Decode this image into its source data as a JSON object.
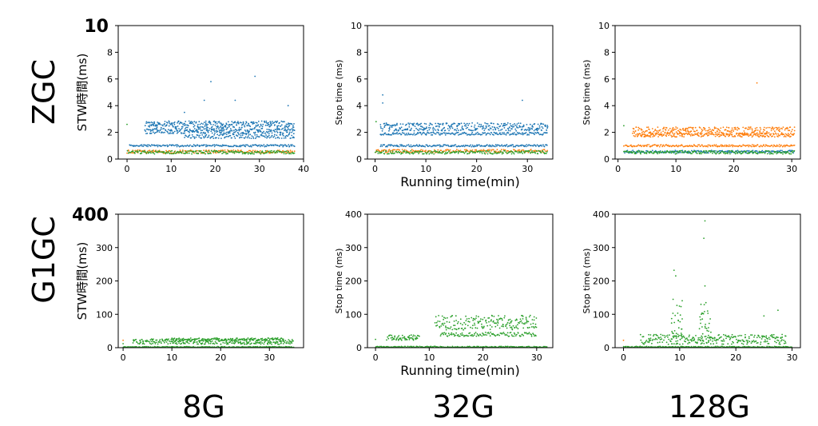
{
  "colors": {
    "blue": "#1f77b4",
    "orange": "#ff7f0e",
    "green": "#2ca02c"
  },
  "row_labels": [
    "ZGC",
    "G1GC"
  ],
  "col_labels": [
    "8G",
    "32G",
    "128G"
  ],
  "chart_data": [
    {
      "type": "scatter",
      "id": "zgc-8g",
      "row": 0,
      "col": 0,
      "xlabel": "",
      "ylabel": "STW時間(ms)",
      "xlim": [
        -2,
        40
      ],
      "ylim": [
        0,
        10
      ],
      "xticks": [
        0,
        10,
        20,
        30,
        40
      ],
      "yticks": [
        0,
        2,
        4,
        6,
        8,
        10
      ],
      "ytick_labels": [
        "0",
        "2",
        "4",
        "6",
        "8",
        "10"
      ],
      "bold_ymax_label": "10",
      "outliers": [
        {
          "color": "blue",
          "x": 19,
          "y": 5.8
        },
        {
          "color": "blue",
          "x": 29,
          "y": 6.2
        },
        {
          "color": "blue",
          "x": 17.5,
          "y": 4.4
        },
        {
          "color": "blue",
          "x": 24.5,
          "y": 4.4
        },
        {
          "color": "blue",
          "x": 36.5,
          "y": 4.0
        },
        {
          "color": "blue",
          "x": 13,
          "y": 3.5
        },
        {
          "color": "green",
          "x": 0,
          "y": 2.6
        }
      ],
      "bands": [
        {
          "color": "blue",
          "x_start": 4,
          "x_end": 38,
          "y": 2.6,
          "spread": 0.25
        },
        {
          "color": "blue",
          "x_start": 4,
          "x_end": 38,
          "y": 2.1,
          "spread": 0.2
        },
        {
          "color": "blue",
          "x_start": 13,
          "x_end": 38,
          "y": 1.7,
          "spread": 0.15
        },
        {
          "color": "blue",
          "x_start": 0.5,
          "x_end": 38,
          "y": 1.0,
          "spread": 0.08
        },
        {
          "color": "orange",
          "x_start": 0,
          "x_end": 38,
          "y": 0.55,
          "spread": 0.12
        },
        {
          "color": "green",
          "x_start": 0,
          "x_end": 38,
          "y": 0.5,
          "spread": 0.12
        }
      ]
    },
    {
      "type": "scatter",
      "id": "zgc-32g",
      "row": 0,
      "col": 1,
      "xlabel": "Running time(min)",
      "ylabel": "Stop time (ms)",
      "xlim": [
        -1.5,
        35
      ],
      "ylim": [
        0,
        10
      ],
      "xticks": [
        0,
        10,
        20,
        30
      ],
      "yticks": [
        0,
        2,
        4,
        6,
        8,
        10
      ],
      "ytick_labels": [
        "0",
        "2",
        "4",
        "6",
        "8",
        "10"
      ],
      "bold_ymax_label": "",
      "outliers": [
        {
          "color": "blue",
          "x": 1.5,
          "y": 4.8
        },
        {
          "color": "blue",
          "x": 1.5,
          "y": 4.2
        },
        {
          "color": "blue",
          "x": 29,
          "y": 4.4
        },
        {
          "color": "green",
          "x": 0.2,
          "y": 2.8
        }
      ],
      "bands": [
        {
          "color": "blue",
          "x_start": 1,
          "x_end": 34,
          "y": 2.4,
          "spread": 0.3
        },
        {
          "color": "blue",
          "x_start": 1,
          "x_end": 34,
          "y": 1.9,
          "spread": 0.1
        },
        {
          "color": "blue",
          "x_start": 1,
          "x_end": 34,
          "y": 1.0,
          "spread": 0.08
        },
        {
          "color": "orange",
          "x_start": 0,
          "x_end": 34,
          "y": 0.6,
          "spread": 0.12
        },
        {
          "color": "green",
          "x_start": 0,
          "x_end": 34,
          "y": 0.5,
          "spread": 0.12
        }
      ]
    },
    {
      "type": "scatter",
      "id": "zgc-128g",
      "row": 0,
      "col": 2,
      "xlabel": "",
      "ylabel": "Stop time (ms)",
      "xlim": [
        -0.5,
        31.5
      ],
      "ylim": [
        0,
        10
      ],
      "xticks": [
        0,
        10,
        20,
        30
      ],
      "yticks": [
        0,
        2,
        4,
        6,
        8,
        10
      ],
      "ytick_labels": [
        "0",
        "2",
        "4",
        "6",
        "8",
        "10"
      ],
      "bold_ymax_label": "",
      "outliers": [
        {
          "color": "orange",
          "x": 24,
          "y": 5.7
        },
        {
          "color": "green",
          "x": 1,
          "y": 2.5
        }
      ],
      "bands": [
        {
          "color": "orange",
          "x_start": 2.5,
          "x_end": 30.5,
          "y": 2.1,
          "spread": 0.3
        },
        {
          "color": "orange",
          "x_start": 2.5,
          "x_end": 30.5,
          "y": 1.8,
          "spread": 0.15
        },
        {
          "color": "orange",
          "x_start": 1,
          "x_end": 30.5,
          "y": 1.0,
          "spread": 0.08
        },
        {
          "color": "blue",
          "x_start": 1,
          "x_end": 30.5,
          "y": 0.55,
          "spread": 0.1
        },
        {
          "color": "green",
          "x_start": 1,
          "x_end": 30.5,
          "y": 0.5,
          "spread": 0.12
        }
      ]
    },
    {
      "type": "scatter",
      "id": "g1gc-8g",
      "row": 1,
      "col": 0,
      "xlabel": "",
      "ylabel": "STW時間(ms)",
      "xlim": [
        -1,
        37
      ],
      "ylim": [
        0,
        400
      ],
      "xticks": [
        0,
        10,
        20,
        30
      ],
      "yticks": [
        0,
        100,
        200,
        300,
        400
      ],
      "ytick_labels": [
        "0",
        "100",
        "200",
        "300",
        ""
      ],
      "bold_ymax_label": "400",
      "outliers": [
        {
          "color": "orange",
          "x": 0,
          "y": 22
        },
        {
          "color": "green",
          "x": 0,
          "y": 12
        }
      ],
      "bands": [
        {
          "color": "green",
          "x_start": 2,
          "x_end": 35,
          "y": 18,
          "spread": 8
        },
        {
          "color": "green",
          "x_start": 10,
          "x_end": 33,
          "y": 25,
          "spread": 4
        },
        {
          "color": "green",
          "x_start": 0,
          "x_end": 35,
          "y": 2,
          "spread": 1.5
        }
      ]
    },
    {
      "type": "scatter",
      "id": "g1gc-32g",
      "row": 1,
      "col": 1,
      "xlabel": "Running time(min)",
      "ylabel": "Stop time (ms)",
      "xlim": [
        -1.5,
        33
      ],
      "ylim": [
        0,
        400
      ],
      "xticks": [
        0,
        10,
        20,
        30
      ],
      "yticks": [
        0,
        100,
        200,
        300,
        400
      ],
      "ytick_labels": [
        "0",
        "100",
        "200",
        "300",
        "400"
      ],
      "bold_ymax_label": "",
      "outliers": [
        {
          "color": "green",
          "x": 0,
          "y": 25
        }
      ],
      "bands": [
        {
          "color": "green",
          "x_start": 2,
          "x_end": 8,
          "y": 30,
          "spread": 8
        },
        {
          "color": "green",
          "x_start": 11,
          "x_end": 30,
          "y": 75,
          "spread": 22
        },
        {
          "color": "green",
          "x_start": 12,
          "x_end": 30,
          "y": 40,
          "spread": 6
        },
        {
          "color": "green",
          "x_start": 0,
          "x_end": 32,
          "y": 2,
          "spread": 2
        }
      ]
    },
    {
      "type": "scatter",
      "id": "g1gc-128g",
      "row": 1,
      "col": 2,
      "xlabel": "",
      "ylabel": "Stop time (ms)",
      "xlim": [
        -1.5,
        31.5
      ],
      "ylim": [
        0,
        400
      ],
      "xticks": [
        0,
        10,
        20,
        30
      ],
      "yticks": [
        0,
        100,
        200,
        300,
        400
      ],
      "ytick_labels": [
        "0",
        "100",
        "200",
        "300",
        "400"
      ],
      "bold_ymax_label": "",
      "outliers": [
        {
          "color": "green",
          "x": 14.5,
          "y": 380
        },
        {
          "color": "green",
          "x": 14.3,
          "y": 328
        },
        {
          "color": "green",
          "x": 9,
          "y": 232
        },
        {
          "color": "green",
          "x": 9.3,
          "y": 215
        },
        {
          "color": "green",
          "x": 14.5,
          "y": 185
        },
        {
          "color": "green",
          "x": 27.5,
          "y": 112
        },
        {
          "color": "green",
          "x": 25,
          "y": 95
        },
        {
          "color": "orange",
          "x": 0,
          "y": 22
        }
      ],
      "bands": [
        {
          "color": "green",
          "x_start": 8.5,
          "x_end": 10.5,
          "y": 80,
          "spread": 70
        },
        {
          "color": "green",
          "x_start": 13.5,
          "x_end": 15.5,
          "y": 75,
          "spread": 60
        },
        {
          "color": "green",
          "x_start": 3,
          "x_end": 29,
          "y": 25,
          "spread": 15
        },
        {
          "color": "green",
          "x_start": 0,
          "x_end": 30,
          "y": 2,
          "spread": 2
        }
      ]
    }
  ]
}
